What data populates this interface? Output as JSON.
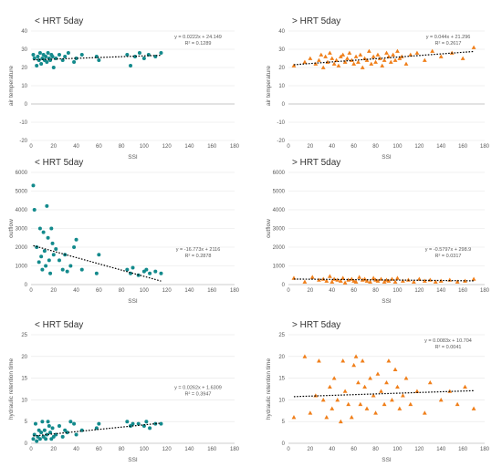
{
  "chart_data": [
    {
      "type": "scatter",
      "title": "< HRT 5day",
      "xlabel": "SSI",
      "ylabel": "air temperature",
      "xlim": [
        0,
        180
      ],
      "xticks": [
        0,
        20,
        40,
        60,
        80,
        100,
        120,
        140,
        160,
        180
      ],
      "ylim": [
        -20,
        40
      ],
      "yticks": [
        -20,
        -10,
        0,
        10,
        20,
        30,
        40
      ],
      "marker": "circle",
      "color": "#138a8c",
      "grid": true,
      "equation": "y = 0.0222x + 24.149",
      "r2": "R² = 0.1289",
      "trend": {
        "slope": 0.0222,
        "intercept": 24.149
      },
      "series": [
        {
          "x": [
            2,
            3,
            5,
            6,
            7,
            8,
            9,
            10,
            11,
            12,
            13,
            14,
            15,
            16,
            17,
            18,
            19,
            20,
            22,
            25,
            28,
            30,
            33,
            38,
            40,
            45,
            58,
            60,
            85,
            88,
            92,
            96,
            100,
            104,
            110,
            115
          ],
          "y": [
            27,
            25,
            21,
            26,
            24,
            28,
            22,
            25,
            27,
            24,
            26,
            23,
            28,
            25,
            24,
            27,
            26,
            20,
            25,
            27,
            24,
            26,
            28,
            23,
            25,
            27,
            26,
            24,
            27,
            21,
            26,
            28,
            25,
            27,
            26,
            28
          ]
        }
      ]
    },
    {
      "type": "scatter",
      "title": "> HRT 5day",
      "xlabel": "SSI",
      "ylabel": "air temperature",
      "xlim": [
        0,
        180
      ],
      "xticks": [
        0,
        20,
        40,
        60,
        80,
        100,
        120,
        140,
        160,
        180
      ],
      "ylim": [
        -20,
        40
      ],
      "yticks": [
        -20,
        -10,
        0,
        10,
        20,
        30,
        40
      ],
      "marker": "triangle",
      "color": "#f07f1a",
      "grid": true,
      "equation": "y = 0.044x + 21.296",
      "r2": "R² = 0.2617",
      "trend": {
        "slope": 0.044,
        "intercept": 21.296
      },
      "series": [
        {
          "x": [
            5,
            15,
            20,
            25,
            28,
            30,
            32,
            34,
            36,
            38,
            40,
            42,
            44,
            46,
            48,
            50,
            52,
            54,
            56,
            58,
            60,
            62,
            64,
            66,
            68,
            70,
            72,
            74,
            76,
            78,
            80,
            82,
            84,
            86,
            88,
            90,
            92,
            94,
            96,
            98,
            100,
            102,
            104,
            108,
            112,
            118,
            125,
            132,
            140,
            150,
            160,
            170
          ],
          "y": [
            21,
            23,
            25,
            22,
            24,
            27,
            20,
            26,
            23,
            28,
            25,
            22,
            24,
            21,
            26,
            27,
            23,
            25,
            28,
            24,
            22,
            26,
            23,
            27,
            20,
            25,
            24,
            29,
            22,
            26,
            23,
            27,
            25,
            21,
            24,
            28,
            26,
            23,
            27,
            24,
            29,
            25,
            26,
            22,
            27,
            28,
            24,
            29,
            26,
            28,
            25,
            31
          ]
        }
      ]
    },
    {
      "type": "scatter",
      "title": "< HRT 5day",
      "xlabel": "SSI",
      "ylabel": "outflow",
      "xlim": [
        0,
        180
      ],
      "xticks": [
        0,
        20,
        40,
        60,
        80,
        100,
        120,
        140,
        160,
        180
      ],
      "ylim": [
        0,
        6000
      ],
      "yticks": [
        0,
        1000,
        2000,
        3000,
        4000,
        5000,
        6000
      ],
      "marker": "circle",
      "color": "#138a8c",
      "grid": true,
      "equation": "y = -16.773x + 2116",
      "r2": "R² = 0.2878",
      "trend": {
        "slope": -16.773,
        "intercept": 2116
      },
      "series": [
        {
          "x": [
            2,
            3,
            5,
            7,
            8,
            9,
            10,
            11,
            12,
            13,
            14,
            15,
            16,
            17,
            18,
            19,
            20,
            22,
            25,
            28,
            30,
            32,
            35,
            38,
            40,
            45,
            58,
            60,
            85,
            88,
            90,
            95,
            100,
            102,
            105,
            110,
            115
          ],
          "y": [
            5300,
            4000,
            2000,
            1200,
            3000,
            1500,
            800,
            2800,
            1800,
            1000,
            4200,
            2500,
            1300,
            600,
            3000,
            2200,
            1600,
            1900,
            1300,
            800,
            1600,
            700,
            1000,
            2000,
            2400,
            800,
            600,
            1600,
            800,
            600,
            900,
            500,
            700,
            800,
            600,
            700,
            600
          ]
        }
      ]
    },
    {
      "type": "scatter",
      "title": "> HRT 5day",
      "xlabel": "SSI",
      "ylabel": "outflow",
      "xlim": [
        0,
        180
      ],
      "xticks": [
        0,
        20,
        40,
        60,
        80,
        100,
        120,
        140,
        160,
        180
      ],
      "ylim": [
        0,
        6000
      ],
      "yticks": [
        0,
        1000,
        2000,
        3000,
        4000,
        5000,
        6000
      ],
      "marker": "triangle",
      "color": "#f07f1a",
      "grid": true,
      "equation": "y = -0.5797x + 298.9",
      "r2": "R² = 0.0317",
      "trend": {
        "slope": -0.5797,
        "intercept": 298.9
      },
      "series": [
        {
          "x": [
            5,
            15,
            22,
            28,
            32,
            35,
            38,
            40,
            42,
            45,
            48,
            50,
            52,
            55,
            58,
            60,
            62,
            65,
            68,
            70,
            72,
            75,
            78,
            80,
            82,
            85,
            88,
            90,
            92,
            95,
            98,
            100,
            105,
            110,
            115,
            120,
            125,
            130,
            135,
            140,
            148,
            155,
            162,
            170
          ],
          "y": [
            350,
            150,
            400,
            250,
            300,
            200,
            450,
            150,
            300,
            250,
            200,
            350,
            100,
            250,
            300,
            200,
            150,
            400,
            250,
            300,
            200,
            150,
            350,
            250,
            200,
            300,
            150,
            250,
            200,
            300,
            150,
            350,
            200,
            250,
            150,
            300,
            200,
            250,
            150,
            200,
            250,
            150,
            200,
            300
          ]
        }
      ]
    },
    {
      "type": "scatter",
      "title": "< HRT 5day",
      "xlabel": "SSI",
      "ylabel": "hydraulic retention time",
      "xlim": [
        0,
        180
      ],
      "xticks": [
        0,
        20,
        40,
        60,
        80,
        100,
        120,
        140,
        160,
        180
      ],
      "ylim": [
        0,
        25
      ],
      "yticks": [
        0,
        5,
        10,
        15,
        20,
        25
      ],
      "marker": "circle",
      "color": "#138a8c",
      "grid": true,
      "equation": "y = 0.0262x + 1.6309",
      "r2": "R² = 0.3947",
      "trend": {
        "slope": 0.0262,
        "intercept": 1.6309
      },
      "series": [
        {
          "x": [
            2,
            3,
            4,
            5,
            6,
            7,
            8,
            9,
            10,
            11,
            12,
            13,
            14,
            15,
            16,
            17,
            18,
            19,
            20,
            22,
            25,
            28,
            30,
            32,
            35,
            38,
            40,
            45,
            58,
            60,
            85,
            88,
            90,
            95,
            100,
            102,
            105,
            110,
            115
          ],
          "y": [
            1,
            2,
            4.5,
            0.5,
            1.5,
            3,
            1,
            2.5,
            5,
            1.5,
            3,
            1,
            2,
            5,
            4,
            2.5,
            1,
            3.5,
            1.5,
            2,
            4,
            1.5,
            3,
            2.5,
            5,
            4.5,
            2,
            3,
            3.5,
            4.5,
            5,
            4,
            4.5,
            4.5,
            4,
            5,
            3.5,
            4.5,
            4.5
          ]
        }
      ]
    },
    {
      "type": "scatter",
      "title": "> HRT 5day",
      "xlabel": "SSI",
      "ylabel": "hydraulic retention time",
      "xlim": [
        0,
        180
      ],
      "xticks": [
        0,
        20,
        40,
        60,
        80,
        100,
        120,
        140,
        160,
        180
      ],
      "ylim": [
        0,
        25
      ],
      "yticks": [
        0,
        5,
        10,
        15,
        20,
        25
      ],
      "marker": "triangle",
      "color": "#f07f1a",
      "grid": true,
      "equation": "y = 0.0083x + 10.704",
      "r2": "R² = 0.0041",
      "trend": {
        "slope": 0.0083,
        "intercept": 10.704
      },
      "series": [
        {
          "x": [
            5,
            15,
            20,
            25,
            28,
            32,
            35,
            38,
            40,
            42,
            45,
            48,
            50,
            52,
            55,
            58,
            60,
            62,
            64,
            66,
            68,
            70,
            72,
            75,
            78,
            80,
            82,
            85,
            88,
            90,
            92,
            95,
            98,
            100,
            102,
            105,
            108,
            112,
            118,
            125,
            130,
            140,
            148,
            155,
            162,
            170
          ],
          "y": [
            6,
            20,
            7,
            11,
            19,
            10,
            6,
            13,
            8,
            15,
            10,
            5,
            19,
            12,
            9,
            6,
            18,
            20,
            14,
            9,
            19,
            13,
            8,
            15,
            11,
            7,
            16,
            12,
            9,
            14,
            19,
            10,
            17,
            13,
            8,
            11,
            15,
            9,
            12,
            7,
            14,
            10,
            12,
            9,
            13,
            8
          ]
        }
      ]
    }
  ]
}
